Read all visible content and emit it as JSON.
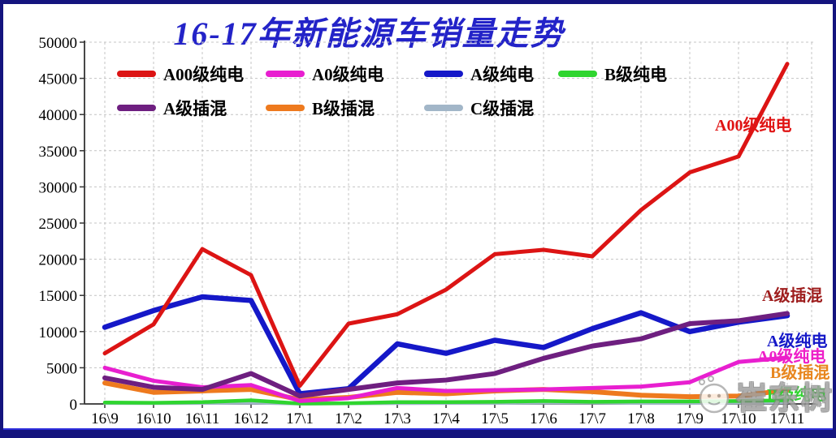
{
  "title": "16-17年新能源车销量走势",
  "watermark": "崔东树",
  "colors": {
    "title": "#2323c8",
    "border": "#14147e",
    "grid": "#c4c4c4",
    "axis": "#333333"
  },
  "right_labels": [
    {
      "text": "A00级纯电",
      "color": "#e01414"
    },
    {
      "text": "A级插混",
      "color": "#9e1d1d"
    },
    {
      "text": "A级纯电",
      "color": "#1518c8"
    },
    {
      "text": "A0级纯电",
      "color": "#ee1ec8"
    },
    {
      "text": "B级插混",
      "color": "#e8861e"
    },
    {
      "text": "B级纯电",
      "color": "#2fd52f"
    }
  ],
  "chart_data": {
    "type": "line",
    "title": "16-17年新能源车销量走势",
    "xlabel": "",
    "ylabel": "",
    "ylim": [
      0,
      50000
    ],
    "ytick_step": 5000,
    "y_tick_labels": [
      "0",
      "5000",
      "10000",
      "15000",
      "20000",
      "25000",
      "30000",
      "35000",
      "40000",
      "45000",
      "50000"
    ],
    "grid": true,
    "legend_position": "top-inside-two-rows",
    "categories": [
      "16\\9",
      "16\\10",
      "16\\11",
      "16\\12",
      "17\\1",
      "17\\2",
      "17\\3",
      "17\\4",
      "17\\5",
      "17\\6",
      "17\\7",
      "17\\8",
      "17\\9",
      "17\\10",
      "17\\11"
    ],
    "series": [
      {
        "name": "A00级纯电",
        "color": "#dc1414",
        "values": [
          7000,
          11000,
          21400,
          17800,
          2500,
          11100,
          12400,
          15800,
          20700,
          21300,
          20400,
          26800,
          32000,
          34200,
          47000
        ]
      },
      {
        "name": "A0级纯电",
        "color": "#e81fd0",
        "values": [
          5000,
          3200,
          2300,
          2600,
          400,
          800,
          2200,
          1800,
          1900,
          2000,
          2200,
          2400,
          3000,
          5800,
          6400
        ]
      },
      {
        "name": "A级纯电",
        "color": "#1518c8",
        "values": [
          10600,
          12900,
          14800,
          14300,
          1400,
          2100,
          8300,
          7000,
          8800,
          7800,
          10400,
          12600,
          10000,
          11300,
          12200
        ]
      },
      {
        "name": "B级纯电",
        "color": "#2fd52f",
        "values": [
          200,
          150,
          250,
          500,
          50,
          100,
          250,
          250,
          300,
          400,
          300,
          350,
          350,
          400,
          500
        ]
      },
      {
        "name": "A级插混",
        "color": "#6e1f80",
        "values": [
          3600,
          2300,
          2000,
          4200,
          1100,
          2000,
          2900,
          3300,
          4200,
          6300,
          8000,
          9000,
          11100,
          11500,
          12500
        ]
      },
      {
        "name": "B级插混",
        "color": "#ee7a1e",
        "values": [
          2900,
          1600,
          1800,
          2000,
          600,
          900,
          1600,
          1400,
          1800,
          2000,
          1700,
          1200,
          1000,
          1100,
          1900
        ]
      },
      {
        "name": "C级插混",
        "color": "#a2b6c8",
        "values": [
          100,
          80,
          100,
          150,
          30,
          50,
          80,
          100,
          100,
          150,
          150,
          100,
          100,
          150,
          200
        ]
      }
    ]
  }
}
